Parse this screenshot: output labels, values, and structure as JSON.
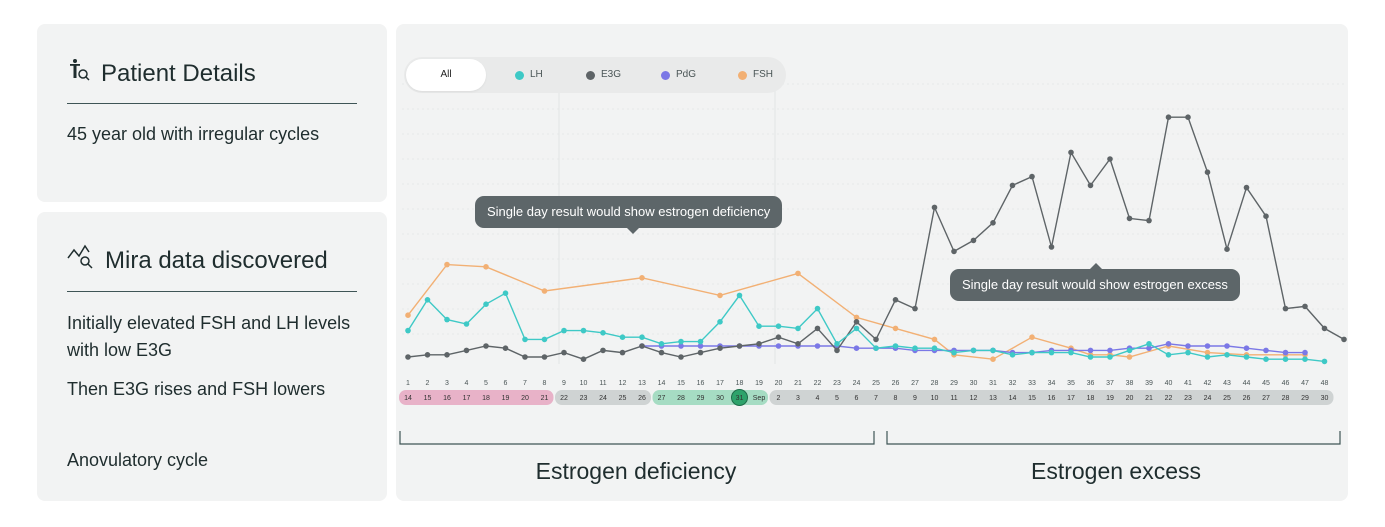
{
  "patient_card": {
    "title": "Patient Details",
    "icon": "person-search-icon",
    "description": "45 year old with irregular cycles"
  },
  "mira_card": {
    "title": "Mira data discovered",
    "icon": "trend-search-icon",
    "findings": [
      "Initially elevated FSH and LH levels with low E3G",
      "Then E3G rises and FSH lowers",
      "Anovulatory cycle"
    ]
  },
  "legend": {
    "all_label": "All",
    "items": [
      {
        "label": "LH",
        "color": "#3ec9c6"
      },
      {
        "label": "E3G",
        "color": "#5e6467"
      },
      {
        "label": "PdG",
        "color": "#7b78e6"
      },
      {
        "label": "FSH",
        "color": "#f2b074"
      }
    ]
  },
  "callouts": {
    "deficiency": "Single day result would show estrogen deficiency",
    "excess": "Single day result would show estrogen excess"
  },
  "periods": {
    "left": "Estrogen deficiency",
    "right": "Estrogen excess"
  },
  "colors": {
    "LH": "#3ec9c6",
    "E3G": "#5e6467",
    "PdG": "#7b78e6",
    "FSH": "#f2b074",
    "pink_band": "#e8b2c8",
    "grey_band": "#cfd3d3",
    "green_band": "#a6dcc3",
    "today": "#2ea36b"
  },
  "chart_data": {
    "type": "line",
    "title": "",
    "xlabel": "",
    "ylabel": "",
    "ylim": [
      0,
      12
    ],
    "x": [
      1,
      2,
      3,
      4,
      5,
      6,
      7,
      8,
      9,
      10,
      11,
      12,
      13,
      14,
      15,
      16,
      17,
      18,
      19,
      20,
      21,
      22,
      23,
      24,
      25,
      26,
      27,
      28,
      29,
      30,
      31,
      32,
      33,
      34,
      35,
      36,
      37,
      38,
      39,
      40,
      41,
      42,
      43,
      44,
      45,
      46,
      47,
      48
    ],
    "dates": [
      "14",
      "15",
      "16",
      "17",
      "18",
      "19",
      "20",
      "21",
      "22",
      "23",
      "24",
      "25",
      "26",
      "27",
      "28",
      "29",
      "30",
      "31",
      "Sep",
      "2",
      "3",
      "4",
      "5",
      "6",
      "7",
      "8",
      "9",
      "10",
      "11",
      "12",
      "13",
      "14",
      "15",
      "16",
      "17",
      "18",
      "19",
      "20",
      "21",
      "22",
      "23",
      "24",
      "25",
      "26",
      "27",
      "28",
      "29",
      "30"
    ],
    "date_bands": [
      {
        "from": 1,
        "to": 8,
        "color": "pink"
      },
      {
        "from": 9,
        "to": 13,
        "color": "grey"
      },
      {
        "from": 14,
        "to": 19,
        "color": "green"
      },
      {
        "from": 20,
        "to": 48,
        "color": "grey"
      }
    ],
    "highlight_day": 18,
    "series": [
      {
        "name": "LH",
        "points": [
          [
            1,
            1.2
          ],
          [
            2,
            2.6
          ],
          [
            3,
            1.7
          ],
          [
            4,
            1.5
          ],
          [
            5,
            2.4
          ],
          [
            6,
            2.9
          ],
          [
            7,
            0.8
          ],
          [
            8,
            0.8
          ],
          [
            9,
            1.2
          ],
          [
            10,
            1.2
          ],
          [
            11,
            1.1
          ],
          [
            12,
            0.9
          ],
          [
            13,
            0.9
          ],
          [
            14,
            0.6
          ],
          [
            15,
            0.7
          ],
          [
            16,
            0.7
          ],
          [
            17,
            1.6
          ],
          [
            18,
            2.8
          ],
          [
            19,
            1.4
          ],
          [
            20,
            1.4
          ],
          [
            21,
            1.3
          ],
          [
            22,
            2.2
          ],
          [
            23,
            0.6
          ],
          [
            24,
            1.3
          ],
          [
            25,
            0.4
          ],
          [
            26,
            0.5
          ],
          [
            27,
            0.4
          ],
          [
            28,
            0.4
          ],
          [
            29,
            0.2
          ],
          [
            30,
            0.3
          ],
          [
            31,
            0.3
          ],
          [
            32,
            0.1
          ],
          [
            33,
            0.2
          ],
          [
            34,
            0.2
          ],
          [
            35,
            0.2
          ],
          [
            36,
            0.0
          ],
          [
            37,
            0.0
          ],
          [
            38,
            0.3
          ],
          [
            39,
            0.6
          ],
          [
            40,
            0.1
          ],
          [
            41,
            0.2
          ],
          [
            42,
            0.0
          ],
          [
            43,
            0.1
          ],
          [
            44,
            0.0
          ],
          [
            45,
            -0.1
          ],
          [
            46,
            -0.1
          ],
          [
            47,
            -0.1
          ],
          [
            48,
            -0.2
          ]
        ]
      },
      {
        "name": "E3G",
        "points": [
          [
            1,
            0.0
          ],
          [
            2,
            0.1
          ],
          [
            3,
            0.1
          ],
          [
            4,
            0.3
          ],
          [
            5,
            0.5
          ],
          [
            6,
            0.4
          ],
          [
            7,
            0.0
          ],
          [
            8,
            0.0
          ],
          [
            9,
            0.2
          ],
          [
            10,
            -0.1
          ],
          [
            11,
            0.3
          ],
          [
            12,
            0.2
          ],
          [
            13,
            0.5
          ],
          [
            14,
            0.2
          ],
          [
            15,
            0.0
          ],
          [
            16,
            0.2
          ],
          [
            17,
            0.4
          ],
          [
            18,
            0.5
          ],
          [
            19,
            0.6
          ],
          [
            20,
            0.9
          ],
          [
            21,
            0.6
          ],
          [
            22,
            1.3
          ],
          [
            23,
            0.3
          ],
          [
            24,
            1.6
          ],
          [
            25,
            0.8
          ],
          [
            26,
            2.6
          ],
          [
            27,
            2.2
          ],
          [
            28,
            6.8
          ],
          [
            29,
            4.8
          ],
          [
            30,
            5.3
          ],
          [
            31,
            6.1
          ],
          [
            32,
            7.8
          ],
          [
            33,
            8.2
          ],
          [
            34,
            5.0
          ],
          [
            35,
            9.3
          ],
          [
            36,
            7.8
          ],
          [
            37,
            9.0
          ],
          [
            38,
            6.3
          ],
          [
            39,
            6.2
          ],
          [
            40,
            10.9
          ],
          [
            41,
            10.9
          ],
          [
            42,
            8.4
          ],
          [
            43,
            4.9
          ],
          [
            44,
            7.7
          ],
          [
            45,
            6.4
          ],
          [
            46,
            2.2
          ],
          [
            47,
            2.3
          ],
          [
            48,
            1.3
          ],
          [
            49,
            0.8
          ]
        ]
      },
      {
        "name": "PdG",
        "points": [
          [
            13,
            0.5
          ],
          [
            14,
            0.5
          ],
          [
            15,
            0.5
          ],
          [
            16,
            0.5
          ],
          [
            17,
            0.5
          ],
          [
            18,
            0.5
          ],
          [
            19,
            0.5
          ],
          [
            20,
            0.5
          ],
          [
            21,
            0.5
          ],
          [
            22,
            0.5
          ],
          [
            23,
            0.5
          ],
          [
            24,
            0.4
          ],
          [
            25,
            0.4
          ],
          [
            26,
            0.4
          ],
          [
            27,
            0.3
          ],
          [
            28,
            0.3
          ],
          [
            29,
            0.3
          ],
          [
            30,
            0.3
          ],
          [
            31,
            0.3
          ],
          [
            32,
            0.2
          ],
          [
            33,
            0.2
          ],
          [
            34,
            0.3
          ],
          [
            35,
            0.3
          ],
          [
            36,
            0.3
          ],
          [
            37,
            0.3
          ],
          [
            38,
            0.4
          ],
          [
            39,
            0.4
          ],
          [
            40,
            0.6
          ],
          [
            41,
            0.5
          ],
          [
            42,
            0.5
          ],
          [
            43,
            0.5
          ],
          [
            44,
            0.4
          ],
          [
            45,
            0.3
          ],
          [
            46,
            0.2
          ],
          [
            47,
            0.2
          ]
        ]
      },
      {
        "name": "FSH",
        "points": [
          [
            1,
            1.9
          ],
          [
            3,
            4.2
          ],
          [
            5,
            4.1
          ],
          [
            8,
            3.0
          ],
          [
            13,
            3.6
          ],
          [
            17,
            2.8
          ],
          [
            21,
            3.8
          ],
          [
            24,
            1.8
          ],
          [
            26,
            1.3
          ],
          [
            28,
            0.8
          ],
          [
            29,
            0.1
          ],
          [
            31,
            -0.1
          ],
          [
            33,
            0.9
          ],
          [
            35,
            0.4
          ],
          [
            36,
            0.1
          ],
          [
            37,
            0.1
          ],
          [
            38,
            0.0
          ],
          [
            40,
            0.5
          ],
          [
            42,
            0.2
          ],
          [
            44,
            0.1
          ],
          [
            46,
            0.1
          ],
          [
            47,
            0.1
          ]
        ]
      }
    ]
  }
}
